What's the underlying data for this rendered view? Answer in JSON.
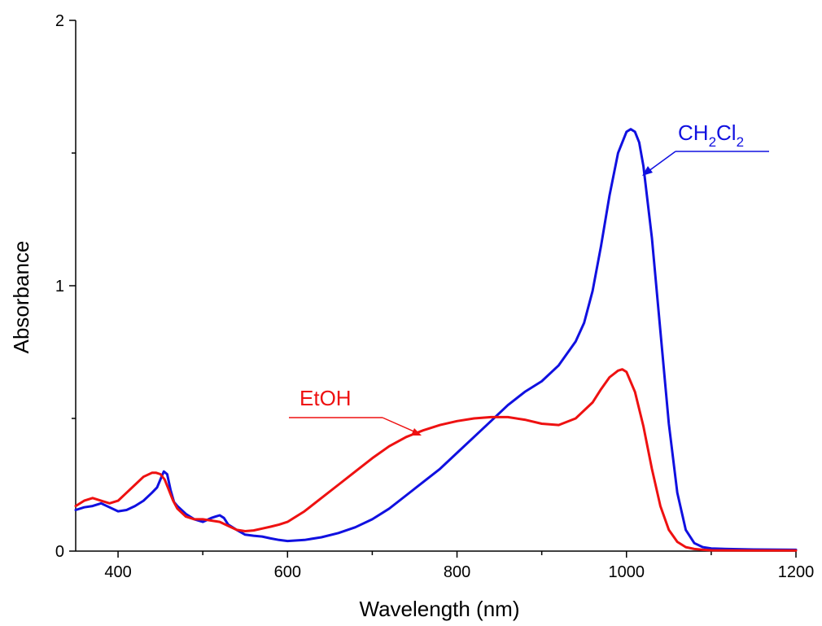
{
  "chart_data": {
    "type": "line",
    "xlabel": "Wavelength (nm)",
    "ylabel": "Absorbance",
    "xlim": [
      350,
      1200
    ],
    "ylim": [
      0,
      2
    ],
    "x_ticks": [
      "400",
      "600",
      "800",
      "1000",
      "1200"
    ],
    "x_tick_values": [
      400,
      600,
      800,
      1000,
      1200
    ],
    "x_minor_tick_values": [
      500,
      700,
      900,
      1100
    ],
    "y_ticks": [
      "0",
      "1",
      "2"
    ],
    "y_tick_values": [
      0,
      1,
      2
    ],
    "y_minor_tick_values": [
      0.5,
      1.5
    ],
    "grid": false,
    "series": [
      {
        "name": "CH2Cl2",
        "label_main": "CH",
        "label_sub1": "2",
        "label_mid": "Cl",
        "label_sub2": "2",
        "color": "#1010e0",
        "x": [
          350,
          360,
          370,
          380,
          390,
          400,
          410,
          420,
          430,
          440,
          446,
          450,
          454,
          458,
          462,
          466,
          470,
          480,
          490,
          500,
          510,
          515,
          520,
          525,
          530,
          540,
          550,
          560,
          570,
          580,
          590,
          600,
          620,
          640,
          660,
          680,
          700,
          720,
          740,
          760,
          780,
          800,
          820,
          840,
          860,
          880,
          900,
          920,
          940,
          950,
          960,
          970,
          980,
          990,
          1000,
          1005,
          1010,
          1015,
          1020,
          1030,
          1040,
          1050,
          1060,
          1070,
          1080,
          1090,
          1100,
          1120,
          1150,
          1200
        ],
        "y": [
          0.155,
          0.165,
          0.17,
          0.18,
          0.165,
          0.15,
          0.155,
          0.17,
          0.19,
          0.22,
          0.24,
          0.27,
          0.3,
          0.29,
          0.23,
          0.185,
          0.17,
          0.14,
          0.12,
          0.11,
          0.125,
          0.13,
          0.135,
          0.125,
          0.1,
          0.08,
          0.062,
          0.058,
          0.055,
          0.048,
          0.042,
          0.038,
          0.042,
          0.052,
          0.068,
          0.09,
          0.12,
          0.16,
          0.21,
          0.26,
          0.31,
          0.37,
          0.43,
          0.49,
          0.55,
          0.6,
          0.64,
          0.7,
          0.79,
          0.86,
          0.98,
          1.15,
          1.34,
          1.5,
          1.58,
          1.59,
          1.58,
          1.54,
          1.45,
          1.18,
          0.83,
          0.48,
          0.22,
          0.08,
          0.03,
          0.015,
          0.01,
          0.008,
          0.006,
          0.005
        ]
      },
      {
        "name": "EtOH",
        "color": "#ee1111",
        "x": [
          350,
          360,
          370,
          380,
          390,
          400,
          410,
          420,
          430,
          440,
          445,
          450,
          455,
          460,
          465,
          470,
          480,
          490,
          500,
          510,
          520,
          530,
          540,
          550,
          560,
          570,
          580,
          590,
          600,
          620,
          640,
          660,
          680,
          700,
          720,
          740,
          760,
          780,
          800,
          820,
          840,
          860,
          880,
          900,
          920,
          940,
          960,
          970,
          980,
          990,
          995,
          1000,
          1010,
          1020,
          1030,
          1040,
          1050,
          1060,
          1070,
          1080,
          1090,
          1100,
          1150,
          1200
        ],
        "y": [
          0.17,
          0.19,
          0.2,
          0.19,
          0.18,
          0.19,
          0.22,
          0.25,
          0.28,
          0.295,
          0.295,
          0.29,
          0.27,
          0.23,
          0.19,
          0.16,
          0.13,
          0.12,
          0.12,
          0.115,
          0.11,
          0.095,
          0.08,
          0.075,
          0.078,
          0.085,
          0.092,
          0.1,
          0.11,
          0.15,
          0.2,
          0.25,
          0.3,
          0.35,
          0.395,
          0.43,
          0.455,
          0.475,
          0.49,
          0.5,
          0.505,
          0.505,
          0.495,
          0.48,
          0.475,
          0.5,
          0.56,
          0.61,
          0.655,
          0.68,
          0.685,
          0.675,
          0.6,
          0.47,
          0.31,
          0.17,
          0.08,
          0.035,
          0.015,
          0.008,
          0.005,
          0.003,
          0.002,
          0.002
        ]
      }
    ]
  }
}
